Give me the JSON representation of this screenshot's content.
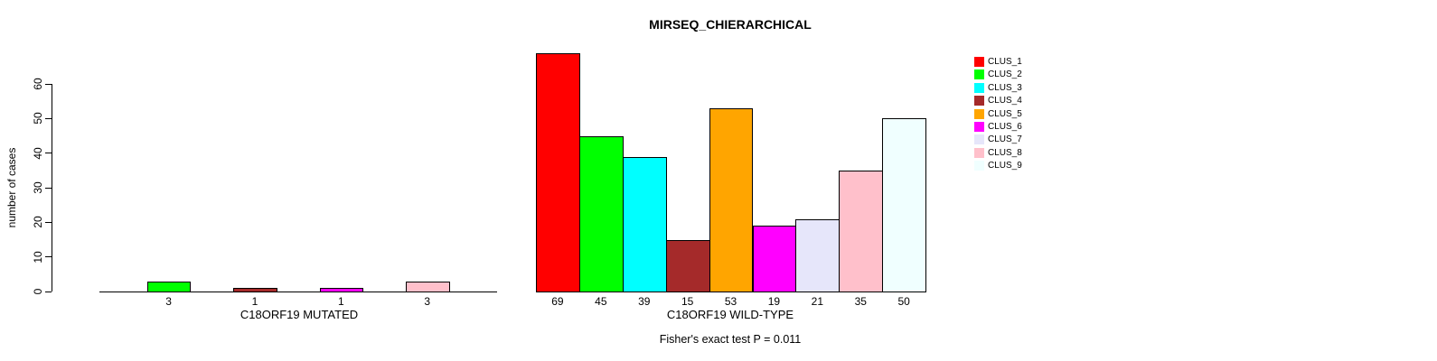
{
  "chart_data": {
    "type": "bar",
    "title": "MIRSEQ_CHIERARCHICAL",
    "ylabel": "number of cases",
    "ylim": [
      0,
      69
    ],
    "yticks": [
      0,
      10,
      20,
      30,
      40,
      50,
      60
    ],
    "grid": false,
    "legend_position": "right",
    "categories": [
      "CLUS_1",
      "CLUS_2",
      "CLUS_3",
      "CLUS_4",
      "CLUS_5",
      "CLUS_6",
      "CLUS_7",
      "CLUS_8",
      "CLUS_9"
    ],
    "panels": [
      {
        "xlabel": "C18ORF19 MUTATED",
        "values": [
          0,
          3,
          0,
          1,
          0,
          1,
          0,
          3,
          0
        ],
        "labels": [
          "",
          "3",
          "",
          "1",
          "",
          "1",
          "",
          "3",
          ""
        ]
      },
      {
        "xlabel": "C18ORF19 WILD-TYPE",
        "values": [
          69,
          45,
          39,
          15,
          53,
          19,
          21,
          35,
          50
        ],
        "labels": [
          "69",
          "45",
          "39",
          "15",
          "53",
          "19",
          "21",
          "35",
          "50"
        ]
      }
    ],
    "annotation": "Fisher's exact test P = 0.011"
  },
  "legend": {
    "items": [
      {
        "label": "CLUS_1",
        "color": "#FF0000"
      },
      {
        "label": "CLUS_2",
        "color": "#00FF00"
      },
      {
        "label": "CLUS_3",
        "color": "#00FFFF"
      },
      {
        "label": "CLUS_4",
        "color": "#A52A2A"
      },
      {
        "label": "CLUS_5",
        "color": "#FFA500"
      },
      {
        "label": "CLUS_6",
        "color": "#FF00FF"
      },
      {
        "label": "CLUS_7",
        "color": "#E6E6FA"
      },
      {
        "label": "CLUS_8",
        "color": "#FFC0CB"
      },
      {
        "label": "CLUS_9",
        "color": "#F0FFFF"
      }
    ]
  }
}
